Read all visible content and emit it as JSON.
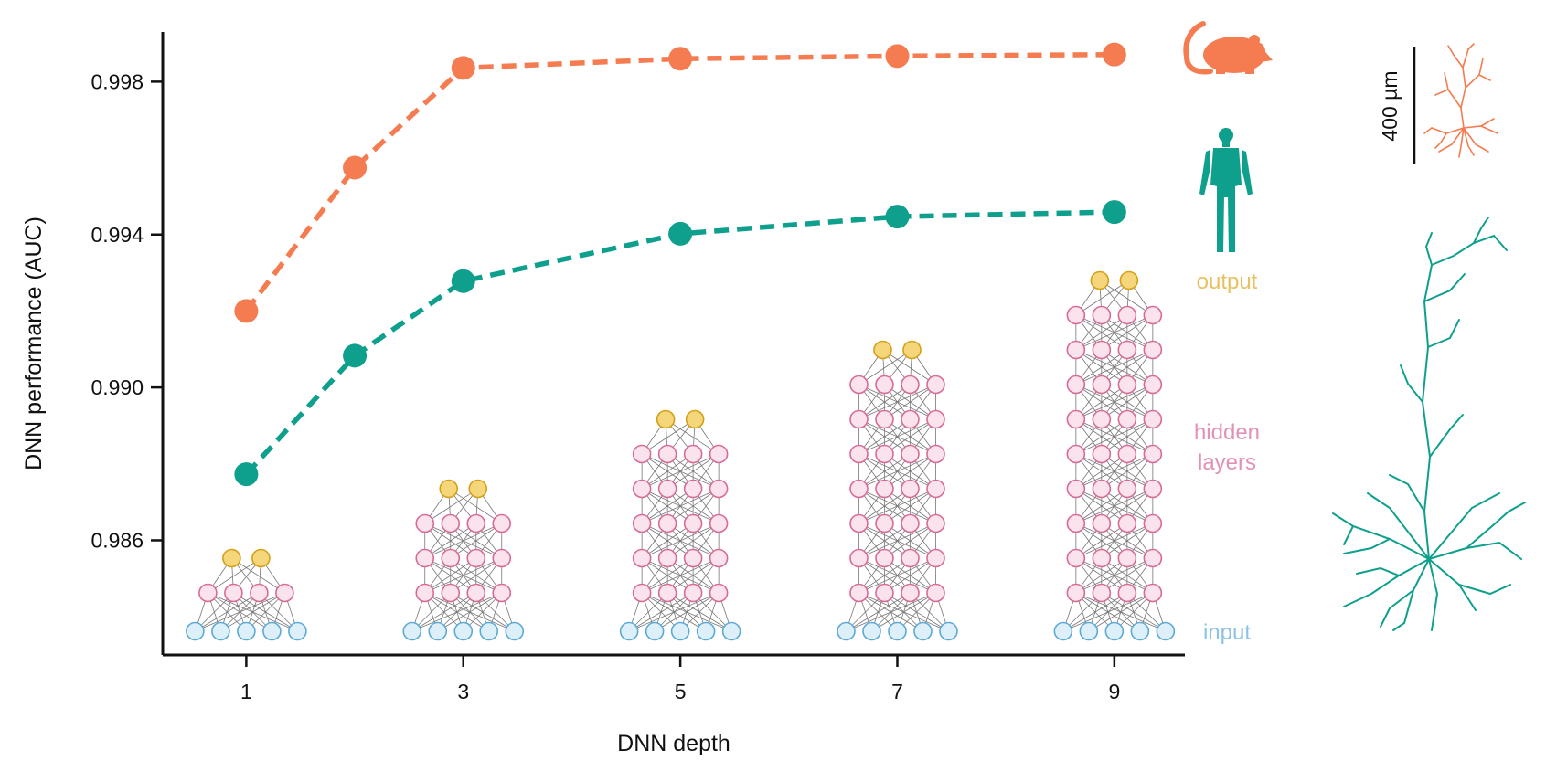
{
  "colors": {
    "mouse": "#F47C50",
    "human": "#0EA08C",
    "output": "#F5D67A",
    "output_stroke": "#D4A017",
    "hidden": "#FBE3EE",
    "hidden_stroke": "#D86A98",
    "input": "#DDF0FA",
    "input_stroke": "#5BAAD6",
    "output_label": "#E8C060",
    "hidden_label": "#E391B6",
    "input_label": "#8CC2E3",
    "axis": "#111111"
  },
  "chart_data": {
    "type": "line",
    "xlabel": "DNN depth",
    "ylabel": "DNN performance (AUC)",
    "xticks": [
      1,
      3,
      5,
      7,
      9
    ],
    "yticks": [
      "0.986",
      "0.990",
      "0.994",
      "0.998"
    ],
    "ylim": [
      0.983,
      0.9993
    ],
    "xlim": [
      0.23,
      9.65
    ],
    "grid": false,
    "line_style": "dashed",
    "series": [
      {
        "key": "mouse",
        "icon": "mouse-icon",
        "x": [
          1,
          2,
          3,
          5,
          7,
          9
        ],
        "y": [
          0.992,
          0.99575,
          0.99836,
          0.9986,
          0.99867,
          0.99871
        ]
      },
      {
        "key": "human",
        "icon": "human-icon",
        "x": [
          1,
          2,
          3,
          5,
          7,
          9
        ],
        "y": [
          0.98773,
          0.99083,
          0.99278,
          0.99402,
          0.99447,
          0.99459
        ]
      }
    ],
    "network_diagrams": [
      {
        "depth": 1,
        "hidden_layers": 1,
        "width": 4
      },
      {
        "depth": 3,
        "hidden_layers": 3,
        "width": 4
      },
      {
        "depth": 5,
        "hidden_layers": 5,
        "width": 4
      },
      {
        "depth": 7,
        "hidden_layers": 7,
        "width": 4
      },
      {
        "depth": 9,
        "hidden_layers": 9,
        "width": 4
      }
    ],
    "side_labels": {
      "output": "output",
      "hidden_line1": "hidden",
      "hidden_line2": "layers",
      "input": "input"
    },
    "scale_bar": "400 µm"
  }
}
